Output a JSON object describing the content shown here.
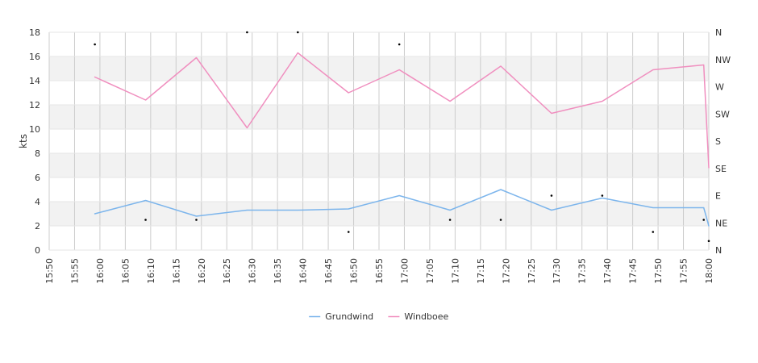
{
  "chart_data": {
    "type": "line",
    "ylabel": "kts",
    "ylim": [
      0,
      18
    ],
    "y_ticks": [
      "0",
      "2",
      "4",
      "6",
      "8",
      "10",
      "12",
      "14",
      "16",
      "18"
    ],
    "x_range_minutes": [
      950,
      1080
    ],
    "x_ticks": [
      "15:50",
      "15:55",
      "16:00",
      "16:05",
      "16:10",
      "16:15",
      "16:20",
      "16:25",
      "16:30",
      "16:35",
      "16:40",
      "16:45",
      "16:50",
      "16:55",
      "17:00",
      "17:05",
      "17:10",
      "17:15",
      "17:20",
      "17:25",
      "17:30",
      "17:35",
      "17:40",
      "17:45",
      "17:50",
      "17:55",
      "18:00"
    ],
    "direction_axis": {
      "labels": [
        "N",
        "NE",
        "E",
        "SE",
        "S",
        "SW",
        "W",
        "NW",
        "N"
      ],
      "range_degrees": [
        0,
        360
      ]
    },
    "grid": true,
    "legend": "bottom-center",
    "series": [
      {
        "name": "Grundwind",
        "color": "#7cb5ec",
        "x": [
          "15:59",
          "16:09",
          "16:19",
          "16:29",
          "16:39",
          "16:49",
          "16:59",
          "17:09",
          "17:19",
          "17:29",
          "17:39",
          "17:49",
          "17:59",
          "18:00"
        ],
        "values": [
          3.0,
          4.1,
          2.8,
          3.3,
          3.3,
          3.4,
          4.5,
          3.3,
          5.0,
          3.3,
          4.3,
          3.5,
          3.5,
          2.0
        ]
      },
      {
        "name": "Windboee",
        "color": "#f08fbf",
        "x": [
          "15:59",
          "16:09",
          "16:19",
          "16:29",
          "16:39",
          "16:49",
          "16:59",
          "17:09",
          "17:19",
          "17:29",
          "17:39",
          "17:49",
          "17:59",
          "18:00"
        ],
        "values": [
          14.3,
          12.4,
          15.9,
          10.1,
          16.3,
          13.0,
          14.9,
          12.3,
          15.2,
          11.3,
          12.3,
          14.9,
          15.3,
          6.8
        ]
      }
    ],
    "direction_points": {
      "x": [
        "15:59",
        "16:09",
        "16:19",
        "16:29",
        "16:39",
        "16:49",
        "16:59",
        "17:09",
        "17:19",
        "17:29",
        "17:39",
        "17:49",
        "17:59",
        "18:00"
      ],
      "degrees": [
        340,
        50,
        50,
        360,
        360,
        30,
        340,
        50,
        50,
        90,
        90,
        30,
        50,
        15
      ]
    }
  }
}
